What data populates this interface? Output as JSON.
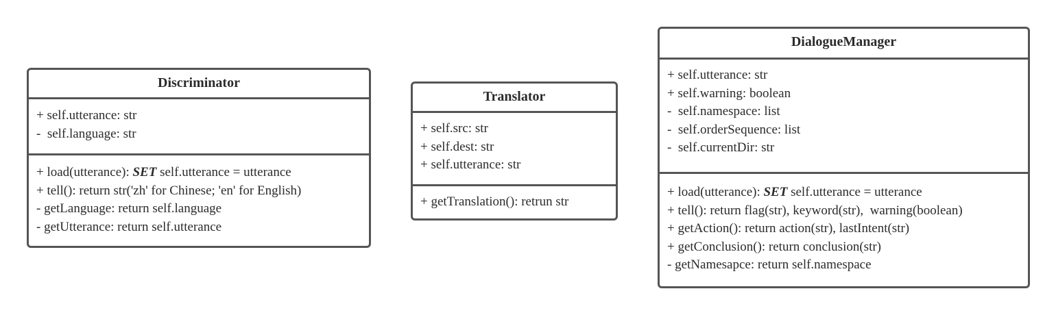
{
  "classes": {
    "discriminator": {
      "name": "Discriminator",
      "attributes": [
        "+ self.utterance: str",
        "-  self.language: str"
      ],
      "operations": [
        {
          "pre": "+ load(utterance): ",
          "kw": "SET",
          "post": " self.utterance = utterance"
        },
        {
          "text": "+ tell(): return str('zh' for Chinese; 'en' for English)"
        },
        {
          "text": "- getLanguage: return self.language"
        },
        {
          "text": "- getUtterance: return self.utterance"
        }
      ]
    },
    "translator": {
      "name": "Translator",
      "attributes": [
        "+ self.src: str",
        "+ self.dest: str",
        "+ self.utterance: str"
      ],
      "operations": [
        {
          "text": "+ getTranslation(): retrun str"
        }
      ]
    },
    "dialoguemanager": {
      "name": "DialogueManager",
      "attributes": [
        "+ self.utterance: str",
        "+ self.warning: boolean",
        "-  self.namespace: list",
        "-  self.orderSequence: list",
        "-  self.currentDir: str"
      ],
      "operations": [
        {
          "pre": "+ load(utterance): ",
          "kw": "SET",
          "post": " self.utterance = utterance"
        },
        {
          "text": "+ tell(): return flag(str), keyword(str),  warning(boolean)"
        },
        {
          "text": "+ getAction(): return action(str), lastIntent(str)"
        },
        {
          "text": "+ getConclusion(): return conclusion(str)"
        },
        {
          "text": "- getNamesapce: return self.namespace"
        }
      ]
    }
  }
}
